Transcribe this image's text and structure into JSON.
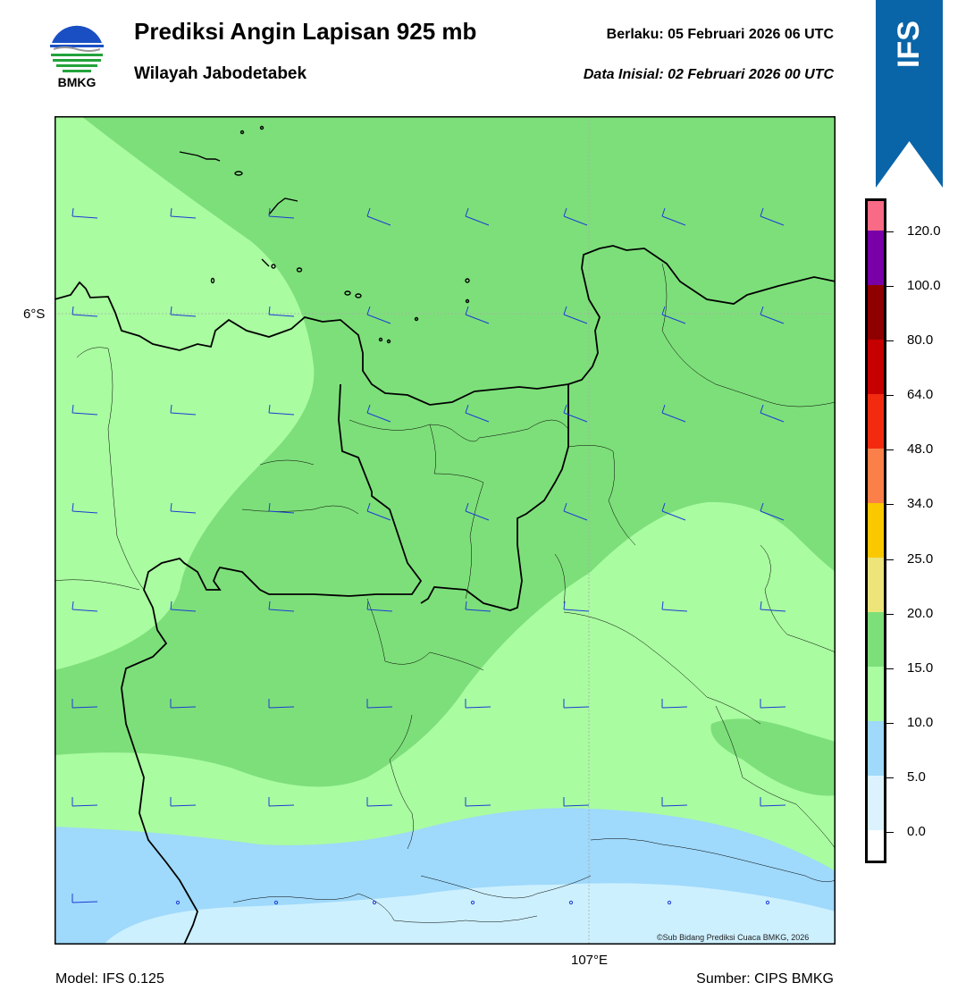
{
  "header": {
    "title": "Prediksi Angin Lapisan 925 mb",
    "subtitle": "Wilayah Jabodetabek",
    "valid": "Berlaku:  05 Februari 2026 06 UTC",
    "initial": "Data Inisial:  02 Februari 2026 00 UTC"
  },
  "logo": {
    "text": "BMKG",
    "icon": "bmkg-logo-icon"
  },
  "model_badge": {
    "text": "IFS",
    "color": "#0a64a8"
  },
  "map": {
    "lat_label": "6°S",
    "lon_label": "107°E",
    "copyright": "©Sub Bidang Prediksi Cuaca BMKG, 2026",
    "colors": {
      "c0_5": "#cdf0ff",
      "c5_10": "#9fd9fb",
      "c10_15": "#a9fca0",
      "c15_20": "#7ddf7a",
      "land_border": "#000000",
      "barb": "#1d3bd6"
    }
  },
  "colorbar": {
    "labels": [
      "0.0",
      "5.0",
      "10.0",
      "15.0",
      "20.0",
      "25.0",
      "34.0",
      "48.0",
      "64.0",
      "80.0",
      "100.0",
      "120.0"
    ],
    "colors": [
      "#ffffff",
      "#dcf3ff",
      "#9fd9fb",
      "#a9fca0",
      "#7ddf7a",
      "#ede47a",
      "#fbc800",
      "#fa7f48",
      "#f22b10",
      "#c60000",
      "#8e0000",
      "#7800a6",
      "#f86a85"
    ]
  },
  "footer": {
    "model": "Model: IFS 0.125",
    "source": "Sumber: CIPS BMKG"
  }
}
